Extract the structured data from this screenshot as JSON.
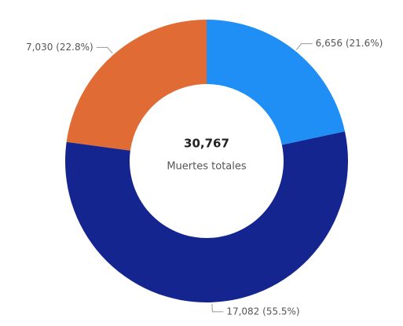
{
  "chart_data": {
    "type": "donut",
    "values": [
      6656,
      17082,
      7030
    ],
    "value_labels": [
      "6,656 (21.6%)",
      "17,082 (55.5%)",
      "7,030 (22.8%)"
    ],
    "colors": [
      "#1f8ef5",
      "#14258f",
      "#e06b35"
    ],
    "center_value": "30,767",
    "center_text": "Muertes totales"
  }
}
